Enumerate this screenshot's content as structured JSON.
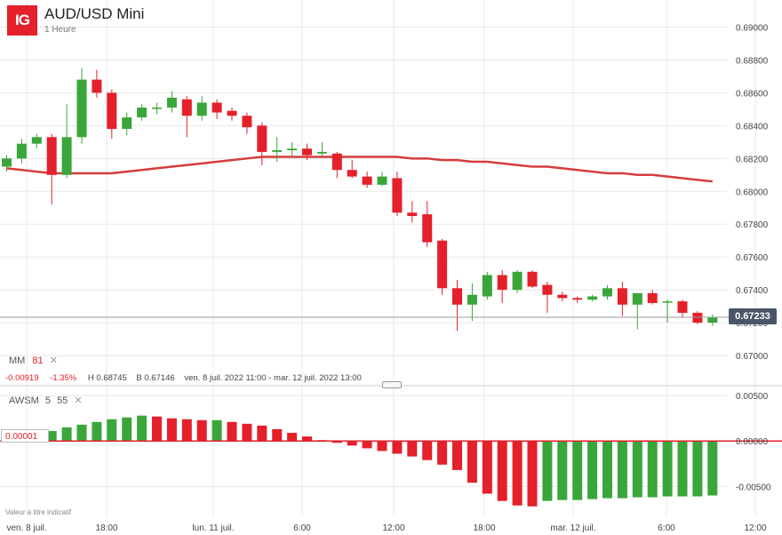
{
  "header": {
    "logo_text": "IG",
    "title": "AUD/USD Mini",
    "subtitle": "1 Heure"
  },
  "indicators": {
    "mm": {
      "name": "MM",
      "period": "81",
      "close": "✕"
    },
    "awsm": {
      "name": "AWSM",
      "fast": "5",
      "slow": "55",
      "close": "✕"
    }
  },
  "stats": {
    "change": "-0.00919",
    "change_pct": "-1.35%",
    "high": "H 0.68745",
    "low": "B 0.67146",
    "range": "ven. 8 juil. 2022 11:00 - mar. 12 juil. 2022 13:00"
  },
  "current_price_label": "0.67233",
  "oscillator_value_label": "0.00001",
  "footnote": "Valeur à titre indicatif",
  "colors": {
    "up": "#3aa63a",
    "down": "#e4202a",
    "ma": "#d63c3c",
    "grid": "#e8e8e8",
    "logo": "#e4202a",
    "price_tag": "#4a5568"
  },
  "chart_data": [
    {
      "type": "candlestick",
      "title": "AUD/USD Mini",
      "interval": "1 Heure",
      "y_ticks": [
        0.69,
        0.688,
        0.686,
        0.684,
        0.682,
        0.68,
        0.678,
        0.676,
        0.674,
        0.672,
        0.67
      ],
      "y_tick_labels": [
        "0.69000",
        "0.68800",
        "0.68600",
        "0.68400",
        "0.68200",
        "0.68000",
        "0.67800",
        "0.67600",
        "0.67400",
        "0.67200",
        "0.67000"
      ],
      "ylim": [
        0.6693,
        0.691
      ],
      "x_labels": [
        "ven. 8 juil.",
        "18:00",
        "lun. 11 juil.",
        "6:00",
        "12:00",
        "18:00",
        "mar. 12 juil.",
        "6:00",
        "12:00"
      ],
      "current_price": 0.67233,
      "candles": [
        {
          "o": 0.6815,
          "h": 0.6822,
          "l": 0.6812,
          "c": 0.682
        },
        {
          "o": 0.682,
          "h": 0.6832,
          "l": 0.6817,
          "c": 0.6829
        },
        {
          "o": 0.6829,
          "h": 0.6835,
          "l": 0.6826,
          "c": 0.6833
        },
        {
          "o": 0.6833,
          "h": 0.6835,
          "l": 0.6792,
          "c": 0.681
        },
        {
          "o": 0.681,
          "h": 0.6853,
          "l": 0.6808,
          "c": 0.6833
        },
        {
          "o": 0.6833,
          "h": 0.6875,
          "l": 0.6829,
          "c": 0.6868
        },
        {
          "o": 0.6868,
          "h": 0.6874,
          "l": 0.6857,
          "c": 0.686
        },
        {
          "o": 0.686,
          "h": 0.6862,
          "l": 0.6832,
          "c": 0.6838
        },
        {
          "o": 0.6838,
          "h": 0.6848,
          "l": 0.6834,
          "c": 0.6845
        },
        {
          "o": 0.6845,
          "h": 0.6853,
          "l": 0.6843,
          "c": 0.6851
        },
        {
          "o": 0.6851,
          "h": 0.6854,
          "l": 0.6847,
          "c": 0.6851
        },
        {
          "o": 0.6851,
          "h": 0.6861,
          "l": 0.6848,
          "c": 0.6857
        },
        {
          "o": 0.6856,
          "h": 0.6858,
          "l": 0.6833,
          "c": 0.6846
        },
        {
          "o": 0.6846,
          "h": 0.6858,
          "l": 0.6843,
          "c": 0.6854
        },
        {
          "o": 0.6854,
          "h": 0.6856,
          "l": 0.6844,
          "c": 0.6848
        },
        {
          "o": 0.6849,
          "h": 0.6851,
          "l": 0.6843,
          "c": 0.6846
        },
        {
          "o": 0.6846,
          "h": 0.6848,
          "l": 0.6835,
          "c": 0.6839
        },
        {
          "o": 0.684,
          "h": 0.6842,
          "l": 0.6816,
          "c": 0.6824
        },
        {
          "o": 0.6824,
          "h": 0.6833,
          "l": 0.6818,
          "c": 0.6825
        },
        {
          "o": 0.6825,
          "h": 0.683,
          "l": 0.6821,
          "c": 0.6826
        },
        {
          "o": 0.6826,
          "h": 0.6829,
          "l": 0.6819,
          "c": 0.6822
        },
        {
          "o": 0.6823,
          "h": 0.683,
          "l": 0.6821,
          "c": 0.6824
        },
        {
          "o": 0.6823,
          "h": 0.6824,
          "l": 0.6808,
          "c": 0.6813
        },
        {
          "o": 0.6813,
          "h": 0.6819,
          "l": 0.6808,
          "c": 0.6809
        },
        {
          "o": 0.6809,
          "h": 0.6812,
          "l": 0.6802,
          "c": 0.6804
        },
        {
          "o": 0.6804,
          "h": 0.6812,
          "l": 0.6803,
          "c": 0.6809
        },
        {
          "o": 0.6808,
          "h": 0.6812,
          "l": 0.6785,
          "c": 0.6787
        },
        {
          "o": 0.6787,
          "h": 0.6794,
          "l": 0.6781,
          "c": 0.6785
        },
        {
          "o": 0.6786,
          "h": 0.6794,
          "l": 0.6766,
          "c": 0.6769
        },
        {
          "o": 0.677,
          "h": 0.6771,
          "l": 0.6737,
          "c": 0.6741
        },
        {
          "o": 0.6741,
          "h": 0.6746,
          "l": 0.6715,
          "c": 0.6731
        },
        {
          "o": 0.6731,
          "h": 0.6744,
          "l": 0.6721,
          "c": 0.6737
        },
        {
          "o": 0.6736,
          "h": 0.6751,
          "l": 0.6734,
          "c": 0.6749
        },
        {
          "o": 0.6749,
          "h": 0.6752,
          "l": 0.6732,
          "c": 0.674
        },
        {
          "o": 0.674,
          "h": 0.6752,
          "l": 0.6738,
          "c": 0.6751
        },
        {
          "o": 0.6751,
          "h": 0.6752,
          "l": 0.6741,
          "c": 0.6742
        },
        {
          "o": 0.6743,
          "h": 0.6745,
          "l": 0.6726,
          "c": 0.6737
        },
        {
          "o": 0.6737,
          "h": 0.6739,
          "l": 0.6733,
          "c": 0.6735
        },
        {
          "o": 0.6735,
          "h": 0.6736,
          "l": 0.6732,
          "c": 0.6734
        },
        {
          "o": 0.6734,
          "h": 0.6737,
          "l": 0.6733,
          "c": 0.6736
        },
        {
          "o": 0.6736,
          "h": 0.6743,
          "l": 0.6734,
          "c": 0.6741
        },
        {
          "o": 0.6741,
          "h": 0.6745,
          "l": 0.6724,
          "c": 0.6731
        },
        {
          "o": 0.6731,
          "h": 0.6738,
          "l": 0.6716,
          "c": 0.6738
        },
        {
          "o": 0.6738,
          "h": 0.674,
          "l": 0.6731,
          "c": 0.6732
        },
        {
          "o": 0.6733,
          "h": 0.6734,
          "l": 0.672,
          "c": 0.6733
        },
        {
          "o": 0.6733,
          "h": 0.6734,
          "l": 0.6723,
          "c": 0.6726
        },
        {
          "o": 0.6726,
          "h": 0.6727,
          "l": 0.6719,
          "c": 0.672
        },
        {
          "o": 0.672,
          "h": 0.6725,
          "l": 0.6718,
          "c": 0.6723
        }
      ],
      "moving_average": {
        "name": "MM 81",
        "values": [
          0.6814,
          0.6813,
          0.6812,
          0.6811,
          0.6811,
          0.6811,
          0.6811,
          0.6811,
          0.6812,
          0.6813,
          0.6814,
          0.6815,
          0.6816,
          0.6817,
          0.6818,
          0.6819,
          0.682,
          0.6821,
          0.6821,
          0.6821,
          0.6821,
          0.6821,
          0.6821,
          0.6821,
          0.6821,
          0.6821,
          0.6821,
          0.682,
          0.682,
          0.6819,
          0.6819,
          0.6818,
          0.6818,
          0.6817,
          0.6816,
          0.6815,
          0.6815,
          0.6814,
          0.6813,
          0.6812,
          0.6811,
          0.6811,
          0.681,
          0.681,
          0.6809,
          0.6808,
          0.6807,
          0.6806
        ]
      }
    },
    {
      "type": "bar",
      "title": "AWSM 5 55",
      "y_ticks": [
        0.005,
        0.0,
        -0.005
      ],
      "y_tick_labels": [
        "0.00500",
        "0.00000",
        "-0.00500"
      ],
      "ylim": [
        -0.0082,
        0.0058
      ],
      "values": [
        0.0002,
        0.0004,
        0.0007,
        0.0011,
        0.0015,
        0.0018,
        0.0021,
        0.0024,
        0.0026,
        0.0028,
        0.0027,
        0.0025,
        0.0024,
        0.0023,
        0.0023,
        0.0021,
        0.0019,
        0.0017,
        0.0013,
        0.0009,
        0.0005,
        0.0001,
        -0.0002,
        -0.0005,
        -0.0008,
        -0.0011,
        -0.0014,
        -0.0017,
        -0.0021,
        -0.0026,
        -0.0032,
        -0.0046,
        -0.0058,
        -0.0066,
        -0.0071,
        -0.0072,
        -0.0066,
        -0.0065,
        -0.0065,
        -0.0064,
        -0.0063,
        -0.0063,
        -0.0062,
        -0.0062,
        -0.0061,
        -0.0061,
        -0.0061,
        -0.006
      ]
    }
  ]
}
